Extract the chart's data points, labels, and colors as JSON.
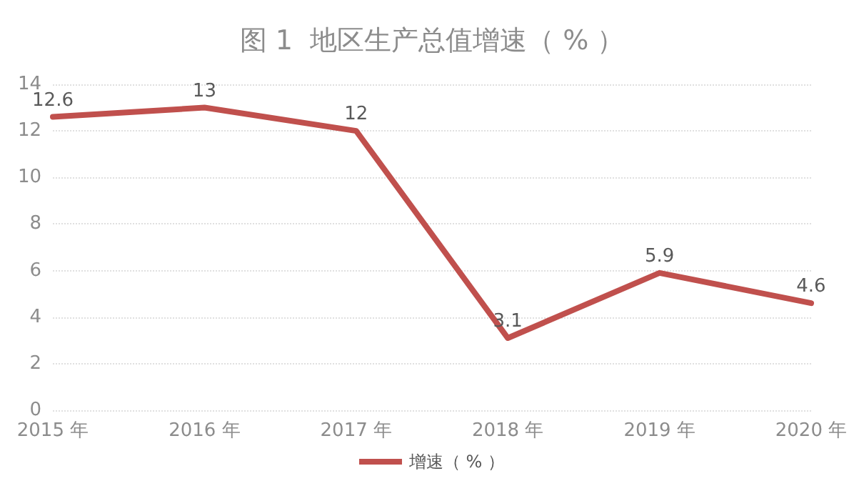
{
  "chart_data": {
    "type": "line",
    "title": "图 1  地区生产总值增速（ % ）",
    "categories": [
      "2015 年",
      "2016 年",
      "2017 年",
      "2018 年",
      "2019 年",
      "2020 年"
    ],
    "series": [
      {
        "name": "增速（ % ）",
        "color": "#c0504d",
        "values": [
          12.6,
          13,
          12,
          3.1,
          5.9,
          4.6
        ]
      }
    ],
    "ylim": [
      0,
      14
    ],
    "yticks": [
      0,
      2,
      4,
      6,
      8,
      10,
      12,
      14
    ],
    "grid": "y",
    "legend": "bottom",
    "data_labels": true,
    "marker": "none",
    "line_style": "solid"
  }
}
